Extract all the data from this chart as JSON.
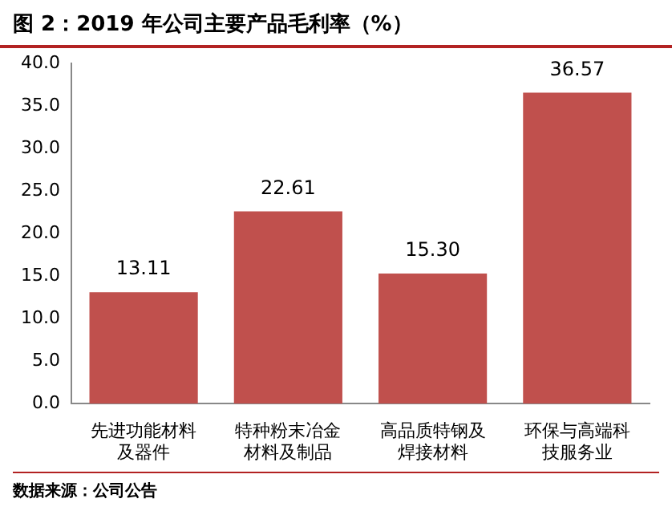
{
  "chart_data": {
    "type": "bar",
    "title": "图 2：2019 年公司主要产品毛利率（%）",
    "categories": [
      "先进功能材料及器件",
      "特种粉末冶金材料及制品",
      "高品质特钢及焊接材料",
      "环保与高端科技服务业"
    ],
    "values": [
      13.11,
      22.61,
      15.3,
      36.57
    ],
    "value_labels": [
      "13.11",
      "22.61",
      "15.30",
      "36.57"
    ],
    "color": "#c0504d",
    "ylim": [
      0,
      40
    ],
    "yticks": [
      {
        "value": 0,
        "label": "0.0"
      },
      {
        "value": 5,
        "label": "5.0"
      },
      {
        "value": 10,
        "label": "10.0"
      },
      {
        "value": 15,
        "label": "15.0"
      },
      {
        "value": 20,
        "label": "20.0"
      },
      {
        "value": 25,
        "label": "25.0"
      },
      {
        "value": 30,
        "label": "30.0"
      },
      {
        "value": 35,
        "label": "35.0"
      },
      {
        "value": 40,
        "label": "40.0"
      }
    ],
    "grid": false,
    "annotations": [
      "数据来源：公司公告"
    ]
  }
}
